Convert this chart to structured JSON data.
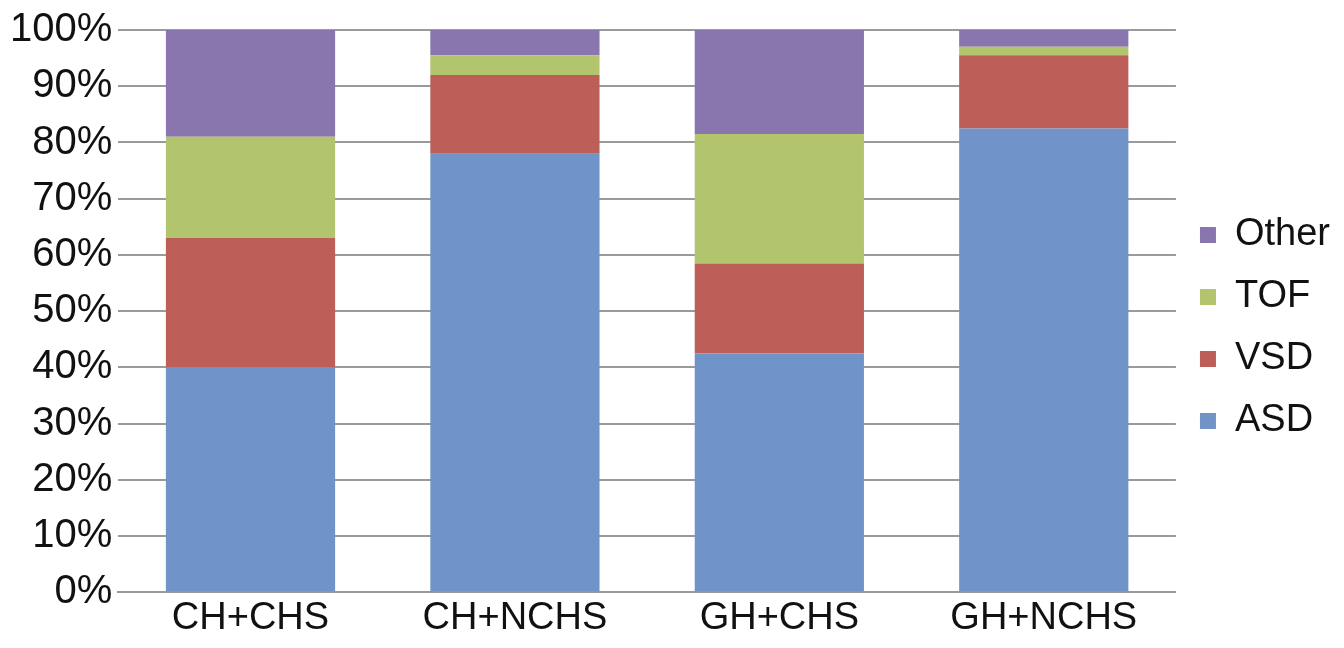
{
  "chart_data": {
    "type": "bar",
    "stacked": true,
    "categories": [
      "CH+CHS",
      "CH+NCHS",
      "GH+CHS",
      "GH+NCHS"
    ],
    "series": [
      {
        "name": "ASD",
        "color": "#7094c8",
        "values": [
          40,
          78,
          42.5,
          82.5
        ]
      },
      {
        "name": "VSD",
        "color": "#bb5f58",
        "values": [
          23,
          14,
          16,
          13
        ]
      },
      {
        "name": "TOF",
        "color": "#b2c46e",
        "values": [
          18,
          3.5,
          23,
          1.5
        ]
      },
      {
        "name": "Other",
        "color": "#8a76ae",
        "values": [
          19,
          4.5,
          18.5,
          3
        ]
      }
    ],
    "ylim": [
      0,
      100
    ],
    "yticks": [
      {
        "value": 0,
        "label": "0%"
      },
      {
        "value": 10,
        "label": "10%"
      },
      {
        "value": 20,
        "label": "20%"
      },
      {
        "value": 30,
        "label": "30%"
      },
      {
        "value": 40,
        "label": "40%"
      },
      {
        "value": 50,
        "label": "50%"
      },
      {
        "value": 60,
        "label": "60%"
      },
      {
        "value": 70,
        "label": "70%"
      },
      {
        "value": 80,
        "label": "80%"
      },
      {
        "value": 90,
        "label": "90%"
      },
      {
        "value": 100,
        "label": "100%"
      }
    ],
    "grid": "y",
    "legend": "right"
  }
}
